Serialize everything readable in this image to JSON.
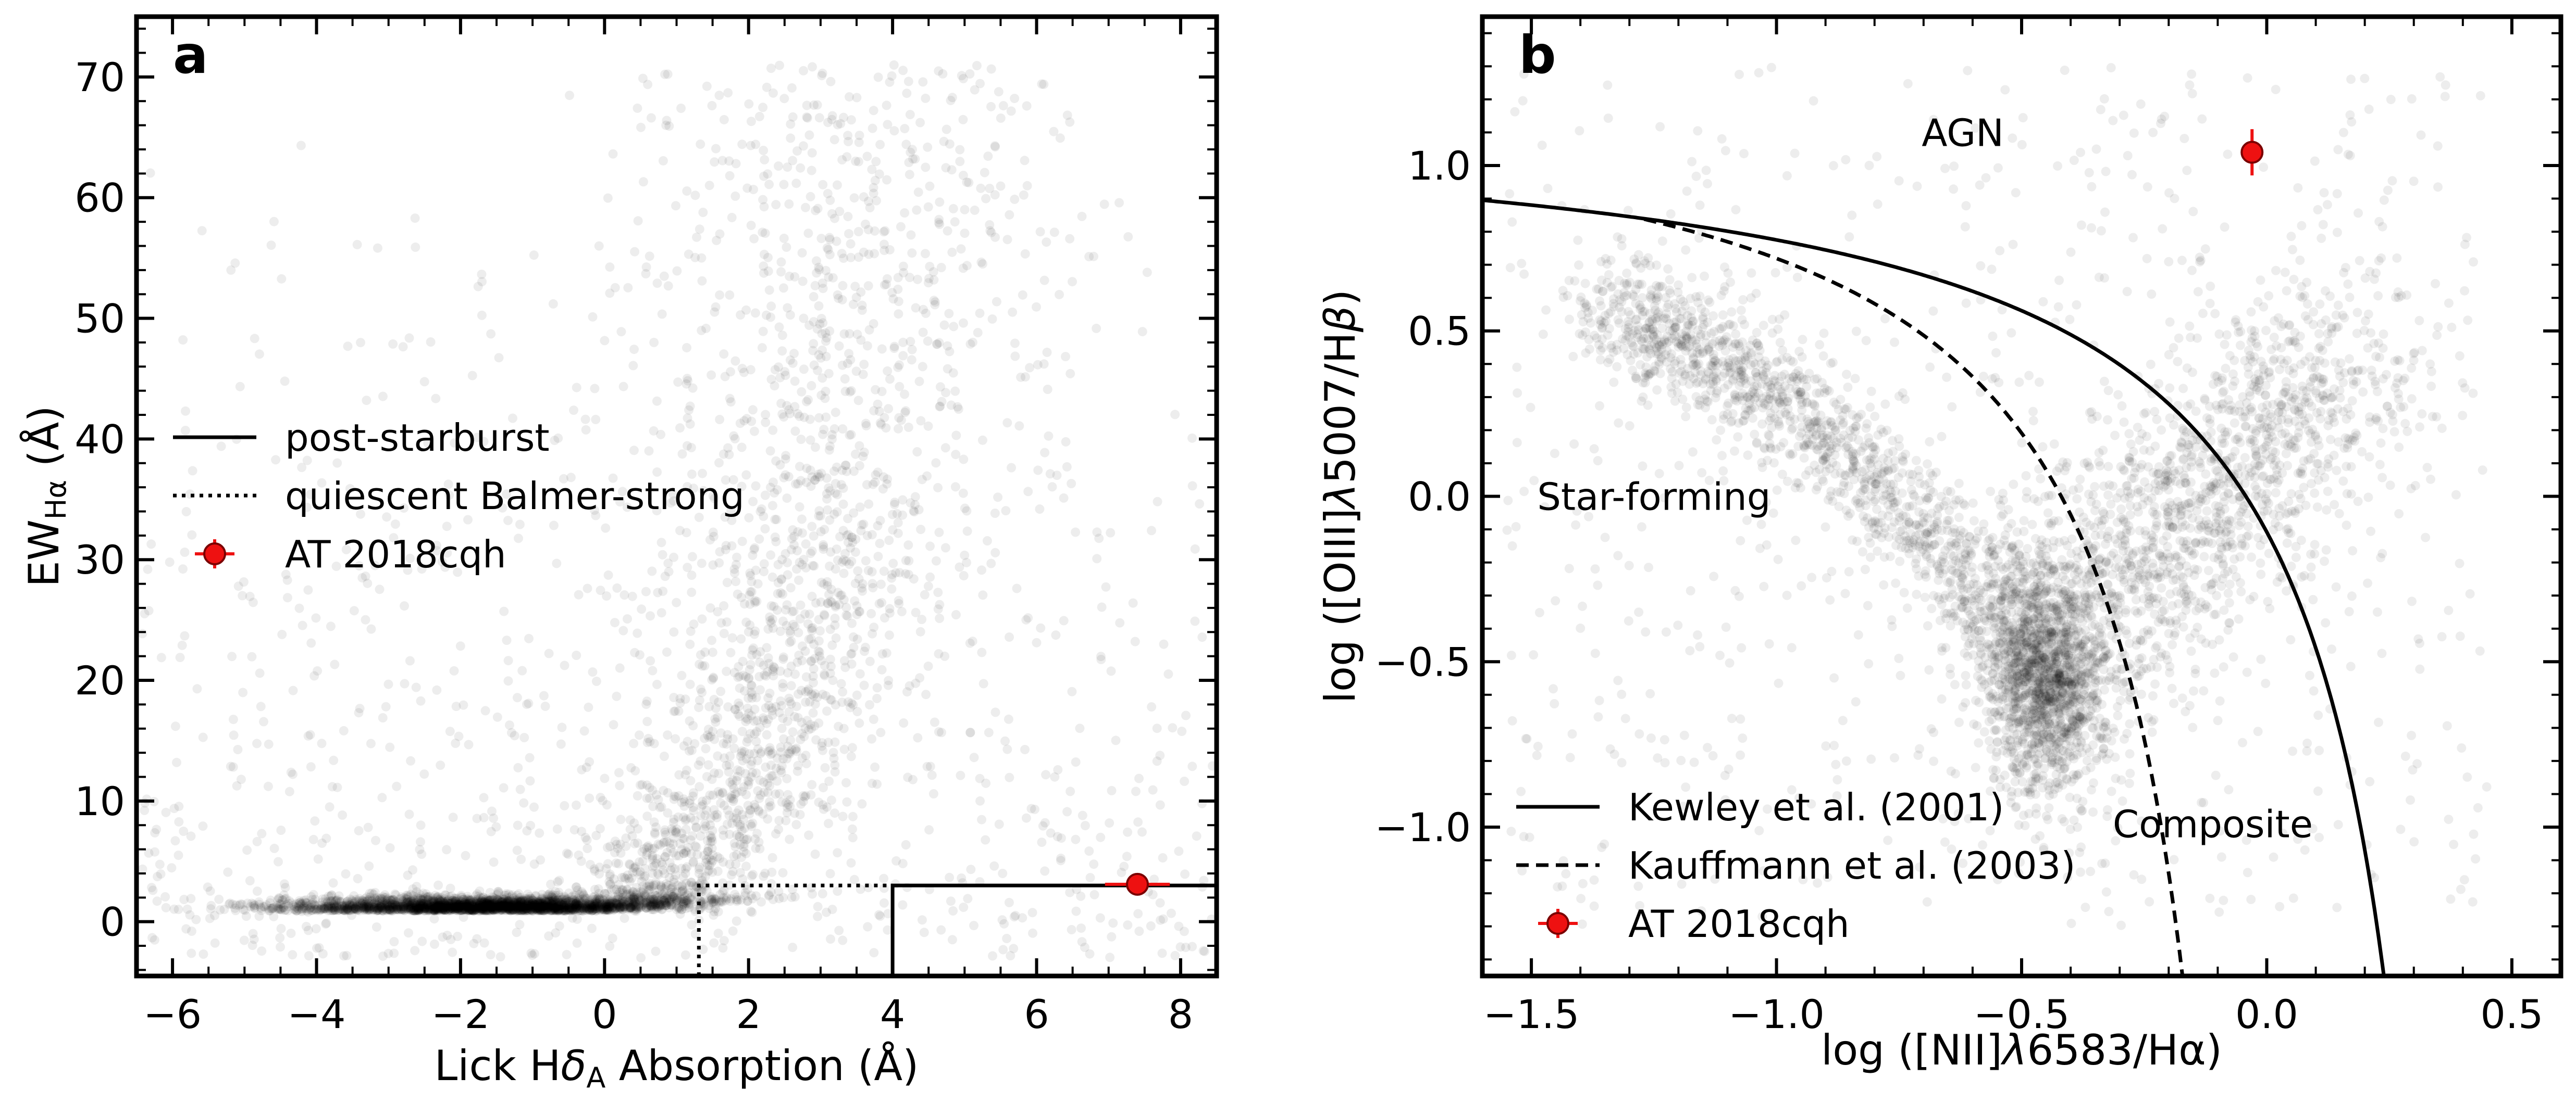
{
  "chart_data": [
    {
      "panel": "a",
      "type": "scatter",
      "panel_label": "a",
      "xlabel_parts": {
        "pre": "Lick H",
        "delta": "δ",
        "sub": "A",
        "post": " Absorption (Å)"
      },
      "ylabel_parts": {
        "pre": "EW",
        "sub": "Hα",
        "post": " (Å)"
      },
      "xlim": [
        -6.5,
        8.5
      ],
      "ylim": [
        -4.5,
        75
      ],
      "xticks": [
        -6,
        -4,
        -2,
        0,
        2,
        4,
        6,
        8
      ],
      "xtick_labels": [
        "−6",
        "−4",
        "−2",
        "0",
        "2",
        "4",
        "6",
        "8"
      ],
      "yticks": [
        0,
        10,
        20,
        30,
        40,
        50,
        60,
        70
      ],
      "ytick_labels": [
        "0",
        "10",
        "20",
        "30",
        "40",
        "50",
        "60",
        "70"
      ],
      "background_population": "grey point cloud of comparison galaxies (dense near EW 1, HδA −3 to 0; plume rising toward HδA 2–4)",
      "series": [
        {
          "name": "post-starburst",
          "style": "solid",
          "points": [
            [
              4.0,
              -4.5
            ],
            [
              4.0,
              3.0
            ],
            [
              8.5,
              3.0
            ]
          ]
        },
        {
          "name": "quiescent Balmer-strong",
          "style": "dotted",
          "points": [
            [
              1.31,
              -4.5
            ],
            [
              1.31,
              3.0
            ],
            [
              4.0,
              3.0
            ]
          ]
        }
      ],
      "highlight": {
        "name": "AT 2018cqh",
        "x": 7.4,
        "y": 3.1,
        "xerr": 0.45,
        "yerr": 0.5,
        "color": "#ee1111"
      },
      "legend": [
        "post-starburst",
        "quiescent Balmer-strong",
        "AT 2018cqh"
      ],
      "legend_location": "center-left"
    },
    {
      "panel": "b",
      "type": "scatter",
      "panel_label": "b",
      "xlabel_parts": {
        "pre": "log ([NII]",
        "lambda": "λ",
        "post": "6583/Hα)"
      },
      "ylabel_parts": {
        "pre": "log ([OIII]",
        "lambda": "λ",
        "mid": "5007/H",
        "beta": "β",
        "post": ")"
      },
      "xlim": [
        -1.6,
        0.6
      ],
      "ylim": [
        -1.45,
        1.45
      ],
      "xticks": [
        -1.5,
        -1.0,
        -0.5,
        0.0,
        0.5
      ],
      "xtick_labels": [
        "−1.5",
        "−1.0",
        "−0.5",
        "0.0",
        "0.5"
      ],
      "yticks": [
        -1.0,
        -0.5,
        0.0,
        0.5,
        1.0
      ],
      "ytick_labels": [
        "−1.0",
        "−0.5",
        "0.0",
        "0.5",
        "1.0"
      ],
      "background_population": "grey point cloud of comparison galaxies in the BPT plane (star-forming sequence plus AGN branch)",
      "series": [
        {
          "name": "Kewley et al. (2001)",
          "style": "solid",
          "equation": "y = 0.61/(x - 0.47) + 1.19"
        },
        {
          "name": "Kauffmann et al. (2003)",
          "style": "dashed",
          "equation": "y = 0.61/(x - 0.05) + 1.3"
        }
      ],
      "highlight": {
        "name": "AT 2018cqh",
        "x": -0.03,
        "y": 1.04,
        "xerr": 0.0,
        "yerr": 0.07,
        "color": "#ee1111"
      },
      "legend": [
        "Kewley et al. (2001)",
        "Kauffmann et al. (2003)",
        "AT 2018cqh"
      ],
      "legend_location": "lower-left",
      "annotations": [
        {
          "text": "AGN",
          "x": -0.62,
          "y": 1.1
        },
        {
          "text": "Star-forming",
          "x": -1.25,
          "y": 0.0
        },
        {
          "text": "Composite",
          "x": -0.11,
          "y": -0.99
        }
      ]
    }
  ],
  "colors": {
    "highlight_fill": "#ee1111",
    "highlight_edge": "#7a0000",
    "cloud": "#000000",
    "axes": "#000000"
  }
}
